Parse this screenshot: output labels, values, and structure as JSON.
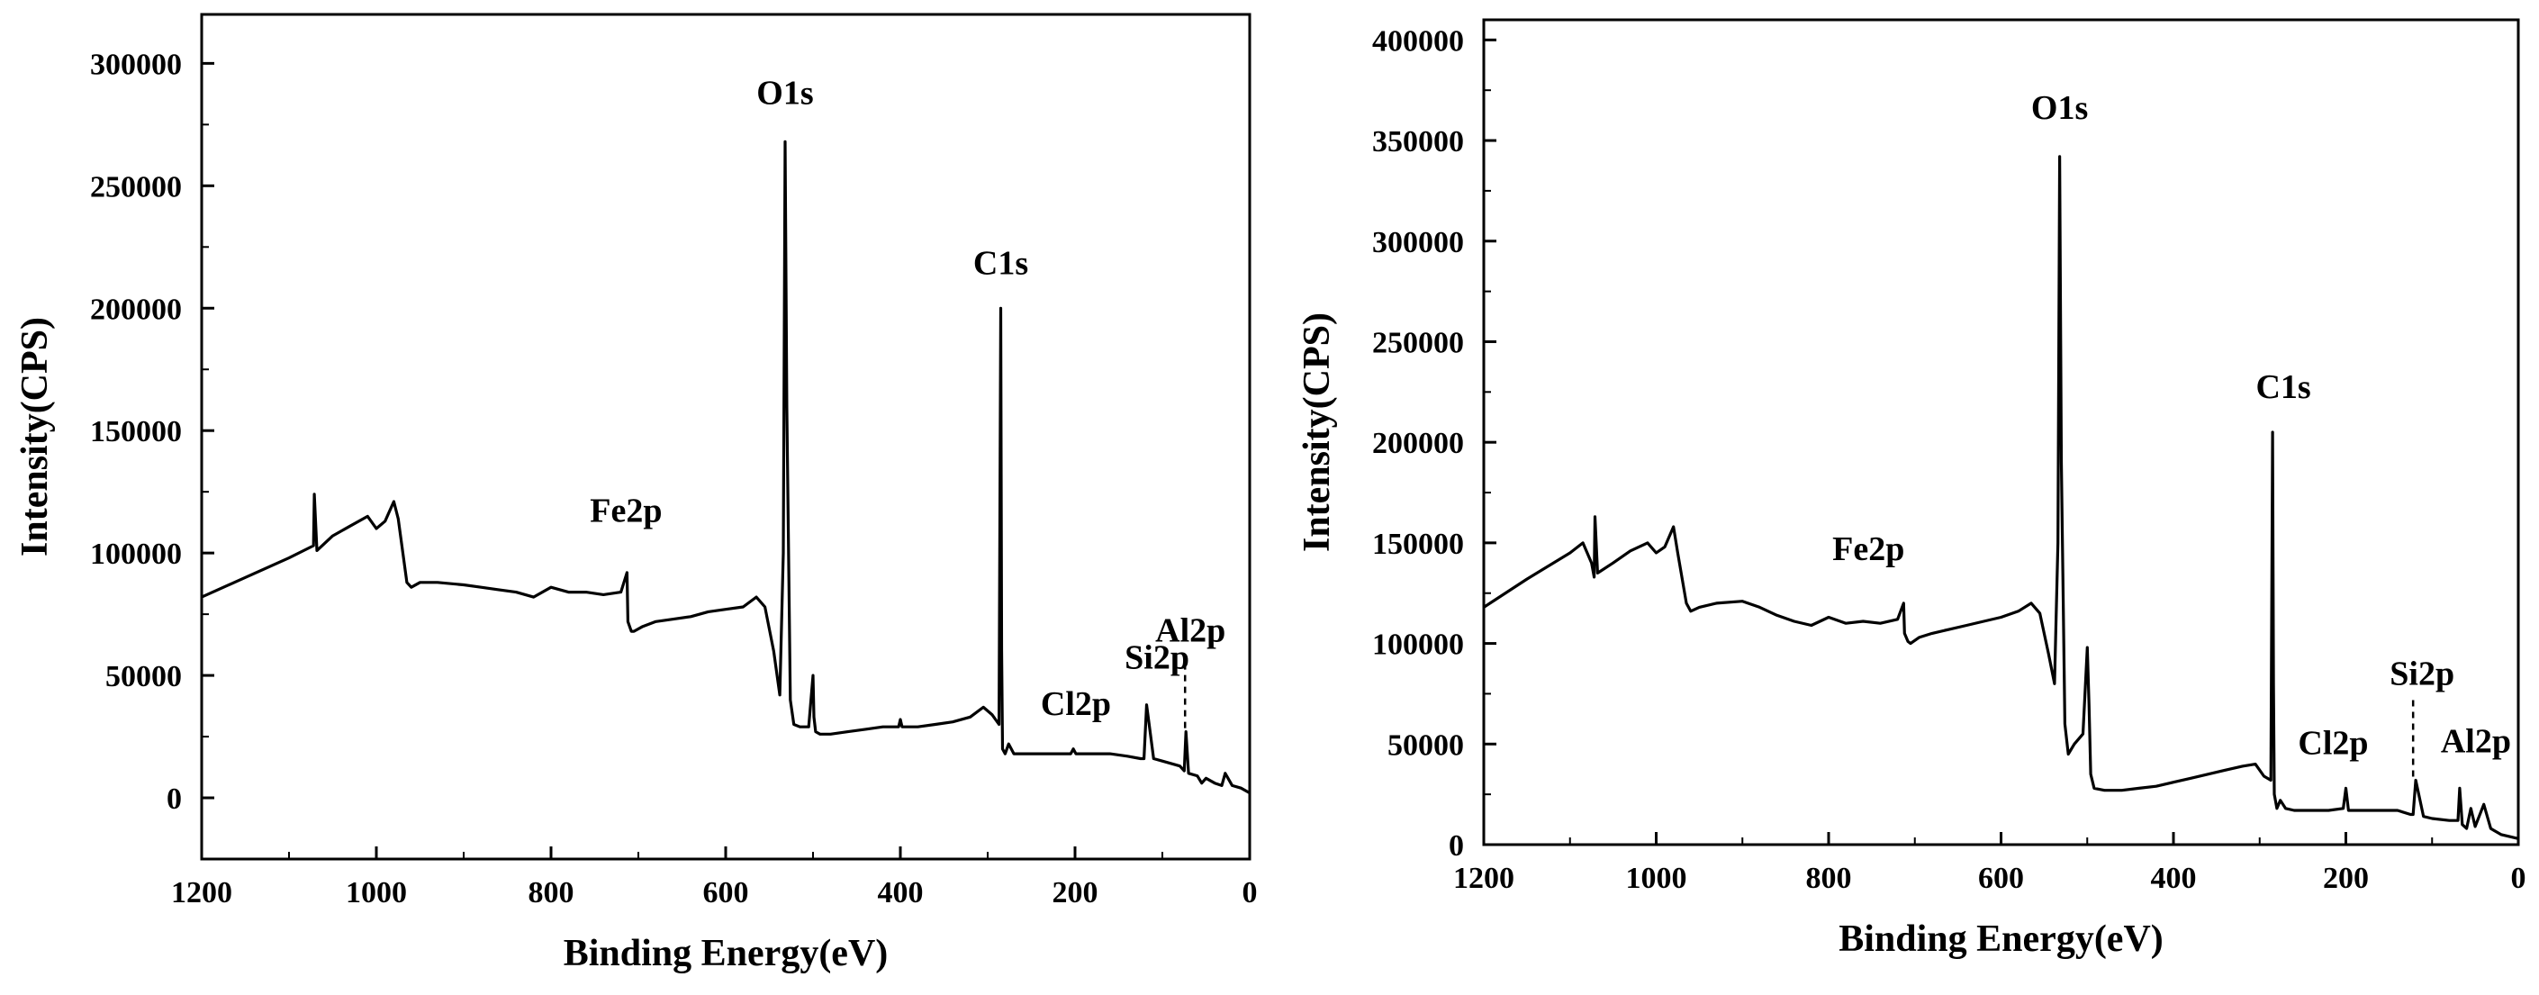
{
  "figure": {
    "panels": [
      {
        "xlabel": "Binding Energy(eV)",
        "ylabel": "Intensity(CPS)"
      },
      {
        "xlabel": "Binding Energy(eV)",
        "ylabel": "Intensity(CPS)"
      }
    ]
  },
  "chart_data": [
    {
      "type": "line",
      "title": "",
      "xlabel": "Binding Energy(eV)",
      "ylabel": "Intensity(CPS)",
      "xlim": [
        1200,
        0
      ],
      "ylim": [
        -25000,
        320000
      ],
      "x_reversed": true,
      "xticks": [
        1200,
        1000,
        800,
        600,
        400,
        200,
        0
      ],
      "yticks": [
        0,
        50000,
        100000,
        150000,
        200000,
        250000,
        300000
      ],
      "line_color": "#000000",
      "series": [
        {
          "x": [
            1200,
            1150,
            1100,
            1072,
            1071,
            1068,
            1050,
            1030,
            1010,
            1000,
            990,
            980,
            975,
            965,
            960,
            950,
            930,
            900,
            880,
            860,
            840,
            820,
            800,
            780,
            760,
            740,
            720,
            713,
            712,
            708,
            705,
            695,
            680,
            660,
            640,
            620,
            600,
            580,
            565,
            555,
            545,
            538,
            534,
            532,
            530,
            526,
            522,
            515,
            505,
            500,
            499,
            497,
            492,
            480,
            460,
            440,
            420,
            402,
            400,
            398,
            380,
            360,
            340,
            320,
            305,
            295,
            287,
            285,
            284,
            283,
            280,
            276,
            270,
            260,
            240,
            220,
            205,
            202,
            199,
            180,
            160,
            140,
            125,
            121,
            118,
            110,
            100,
            80,
            75,
            73,
            70,
            60,
            55,
            50,
            40,
            32,
            28,
            20,
            10,
            0
          ],
          "y": [
            82000,
            90000,
            98000,
            103000,
            124000,
            101000,
            107000,
            111000,
            115000,
            110000,
            113000,
            121000,
            114000,
            88000,
            86000,
            88000,
            88000,
            87000,
            86000,
            85000,
            84000,
            82000,
            86000,
            84000,
            84000,
            83000,
            84000,
            92000,
            72000,
            68000,
            68000,
            70000,
            72000,
            73000,
            74000,
            76000,
            77000,
            78000,
            82000,
            78000,
            60000,
            42000,
            100000,
            268000,
            160000,
            40000,
            30000,
            29000,
            29000,
            50000,
            33000,
            27000,
            26000,
            26000,
            27000,
            28000,
            29000,
            29000,
            32000,
            29000,
            29000,
            30000,
            31000,
            33000,
            37000,
            34000,
            30000,
            200000,
            60000,
            20000,
            18000,
            22000,
            18000,
            18000,
            18000,
            18000,
            18000,
            20000,
            18000,
            18000,
            18000,
            17000,
            16000,
            16000,
            38000,
            16000,
            15000,
            13000,
            11000,
            27000,
            10000,
            9000,
            6000,
            8000,
            6000,
            5000,
            10000,
            5000,
            4000,
            2000
          ]
        }
      ],
      "annotations": [
        {
          "text": "O1s",
          "x": 532,
          "y": 268000
        },
        {
          "text": "C1s",
          "x": 285,
          "y": 200000
        },
        {
          "text": "Fe2p",
          "x": 712,
          "y": 95000
        },
        {
          "text": "Cl2p",
          "x": 199,
          "y": 22000
        },
        {
          "text": "Si2p",
          "x": 102,
          "y": 38000
        },
        {
          "text": "Al2p",
          "x": 74,
          "y": 27000,
          "dashed_leader": true
        }
      ]
    },
    {
      "type": "line",
      "title": "",
      "xlabel": "Binding Energy(eV)",
      "ylabel": "Intensity(CPS)",
      "xlim": [
        1200,
        0
      ],
      "ylim": [
        0,
        410000
      ],
      "x_reversed": true,
      "xticks": [
        1200,
        1000,
        800,
        600,
        400,
        200,
        0
      ],
      "yticks": [
        0,
        50000,
        100000,
        150000,
        200000,
        250000,
        300000,
        350000,
        400000
      ],
      "line_color": "#000000",
      "series": [
        {
          "x": [
            1200,
            1150,
            1100,
            1085,
            1075,
            1072,
            1071,
            1068,
            1050,
            1030,
            1010,
            1000,
            990,
            980,
            975,
            965,
            960,
            950,
            930,
            900,
            880,
            860,
            840,
            820,
            800,
            780,
            760,
            740,
            720,
            713,
            712,
            708,
            705,
            695,
            680,
            660,
            640,
            620,
            600,
            580,
            565,
            555,
            545,
            538,
            534,
            532,
            530,
            526,
            522,
            515,
            505,
            500,
            498,
            496,
            492,
            480,
            460,
            440,
            420,
            400,
            380,
            360,
            340,
            320,
            305,
            295,
            287,
            285,
            284,
            283,
            280,
            276,
            270,
            260,
            240,
            220,
            203,
            200,
            197,
            180,
            160,
            140,
            125,
            122,
            119,
            110,
            100,
            80,
            70,
            68,
            65,
            60,
            55,
            50,
            40,
            32,
            28,
            20,
            10,
            0
          ],
          "y": [
            118000,
            132000,
            145000,
            150000,
            140000,
            133000,
            163000,
            135000,
            140000,
            146000,
            150000,
            145000,
            148000,
            158000,
            145000,
            120000,
            116000,
            118000,
            120000,
            121000,
            118000,
            114000,
            111000,
            109000,
            113000,
            110000,
            111000,
            110000,
            112000,
            120000,
            105000,
            101000,
            100000,
            103000,
            105000,
            107000,
            109000,
            111000,
            113000,
            116000,
            120000,
            115000,
            95000,
            80000,
            150000,
            342000,
            190000,
            60000,
            45000,
            50000,
            55000,
            98000,
            70000,
            35000,
            28000,
            27000,
            27000,
            28000,
            29000,
            31000,
            33000,
            35000,
            37000,
            39000,
            40000,
            34000,
            32000,
            205000,
            80000,
            25000,
            18000,
            22000,
            18000,
            17000,
            17000,
            17000,
            18000,
            28000,
            17000,
            17000,
            17000,
            17000,
            15000,
            15000,
            32000,
            14000,
            13000,
            12000,
            12000,
            28000,
            10000,
            8000,
            18000,
            9000,
            20000,
            8000,
            7000,
            5000,
            4000,
            3000
          ]
        }
      ],
      "annotations": [
        {
          "text": "O1s",
          "x": 532,
          "y": 342000
        },
        {
          "text": "C1s",
          "x": 285,
          "y": 205000
        },
        {
          "text": "Fe2p",
          "x": 712,
          "y": 120000
        },
        {
          "text": "Cl2p",
          "x": 200,
          "y": 28000
        },
        {
          "text": "Si2p",
          "x": 122,
          "y": 32000,
          "dashed_leader": true
        },
        {
          "text": "Al2p",
          "x": 68,
          "y": 28000
        }
      ]
    }
  ]
}
